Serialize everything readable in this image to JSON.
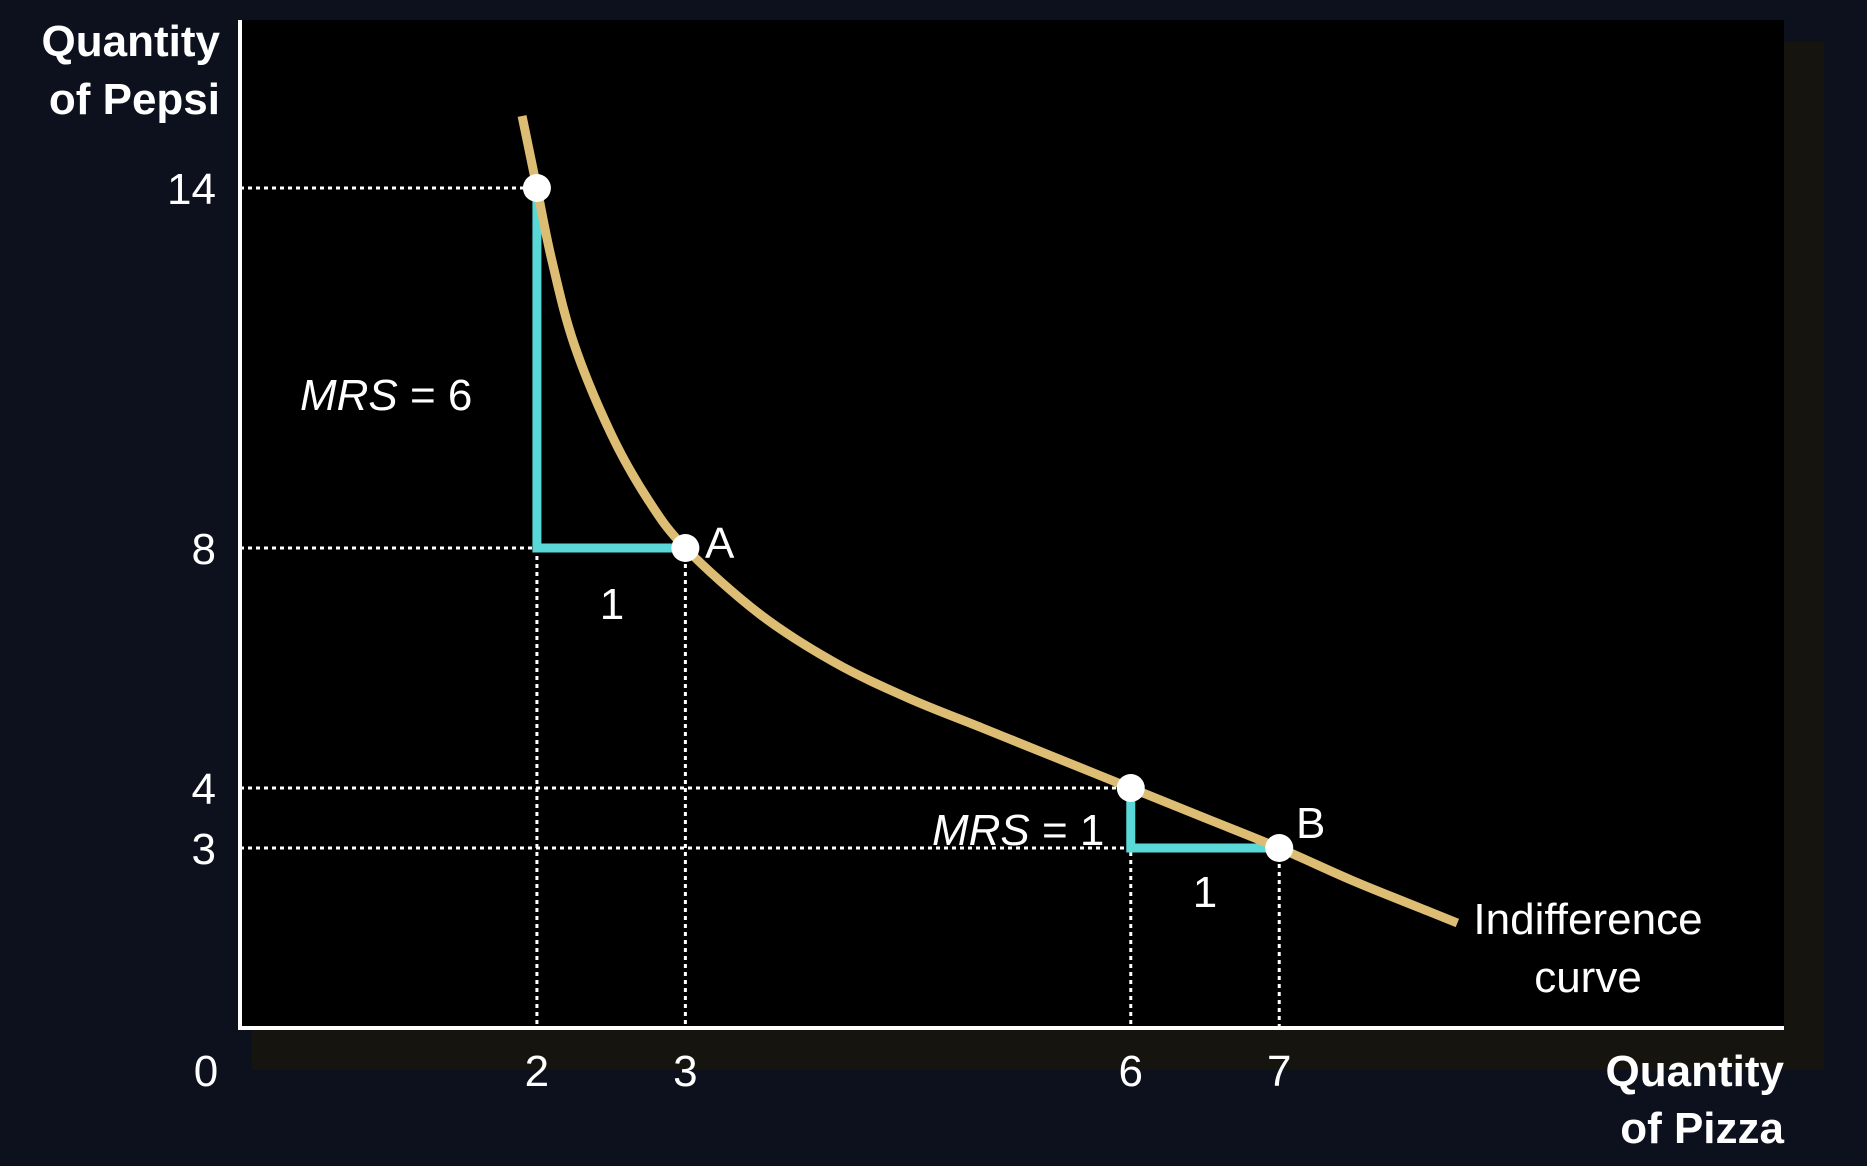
{
  "chart_data": {
    "type": "line",
    "title": "",
    "xlabel_lines": [
      "Quantity",
      "of Pizza"
    ],
    "ylabel_lines": [
      "Quantity",
      "of Pepsi"
    ],
    "origin_label": "0",
    "xlim": [
      0,
      10.4
    ],
    "ylim": [
      0,
      16.8
    ],
    "x_ticks": [
      2,
      3,
      6,
      7
    ],
    "y_ticks": [
      3,
      4,
      8,
      14
    ],
    "grid": false,
    "colors": {
      "curve": "#dcbd73",
      "triangle": "#5ad8d8",
      "points": "#ffffff",
      "axes": "#ffffff",
      "plot_background": "#000000",
      "frame_shadow": "#15140f",
      "page_background": "#0c111d"
    },
    "series": [
      {
        "name": "Indifference curve",
        "name_lines": [
          "Indifference",
          "curve"
        ],
        "x": [
          1.9,
          2,
          2.1,
          2.25,
          2.5,
          2.75,
          3,
          3.5,
          4,
          4.5,
          5,
          5.5,
          6,
          6.5,
          7,
          7.5,
          8,
          8.2
        ],
        "y": [
          15.2,
          14,
          12.8,
          11.4,
          9.9,
          8.8,
          8,
          6.9,
          6.1,
          5.5,
          5,
          4.5,
          4,
          3.5,
          3,
          2.45,
          1.95,
          1.75
        ]
      }
    ],
    "points": [
      {
        "label": "",
        "x": 2,
        "y": 14
      },
      {
        "label": "A",
        "x": 3,
        "y": 8
      },
      {
        "label": "",
        "x": 6,
        "y": 4
      },
      {
        "label": "B",
        "x": 7,
        "y": 3
      }
    ],
    "mrs_triangles": [
      {
        "x1": 2,
        "x2": 3,
        "y_top": 14,
        "y_bottom": 8,
        "mrs_var": "MRS",
        "mrs_value": " = 6",
        "run_label": "1"
      },
      {
        "x1": 6,
        "x2": 7,
        "y_top": 4,
        "y_bottom": 3,
        "mrs_var": "MRS",
        "mrs_value": " = 1",
        "run_label": "1"
      }
    ]
  }
}
